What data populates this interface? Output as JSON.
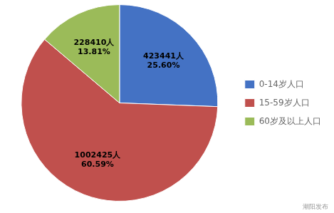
{
  "chart_data": {
    "type": "pie",
    "categories": [
      "0-14岁人口",
      "15-59岁人口",
      "60岁及以上人口"
    ],
    "values": [
      423441,
      1002425,
      228410
    ],
    "value_labels": [
      "423441人",
      "1002425人",
      "228410人"
    ],
    "percentages": [
      {
        "value": 25.6,
        "label": "25.60%"
      },
      {
        "value": 60.59,
        "label": "60.59%"
      },
      {
        "value": 13.81,
        "label": "13.81%"
      }
    ],
    "colors": [
      "#4472C4",
      "#C0504D",
      "#9BBB59"
    ],
    "data_labels": true,
    "legend": "right",
    "annotations": [
      "潮阳发布"
    ]
  }
}
